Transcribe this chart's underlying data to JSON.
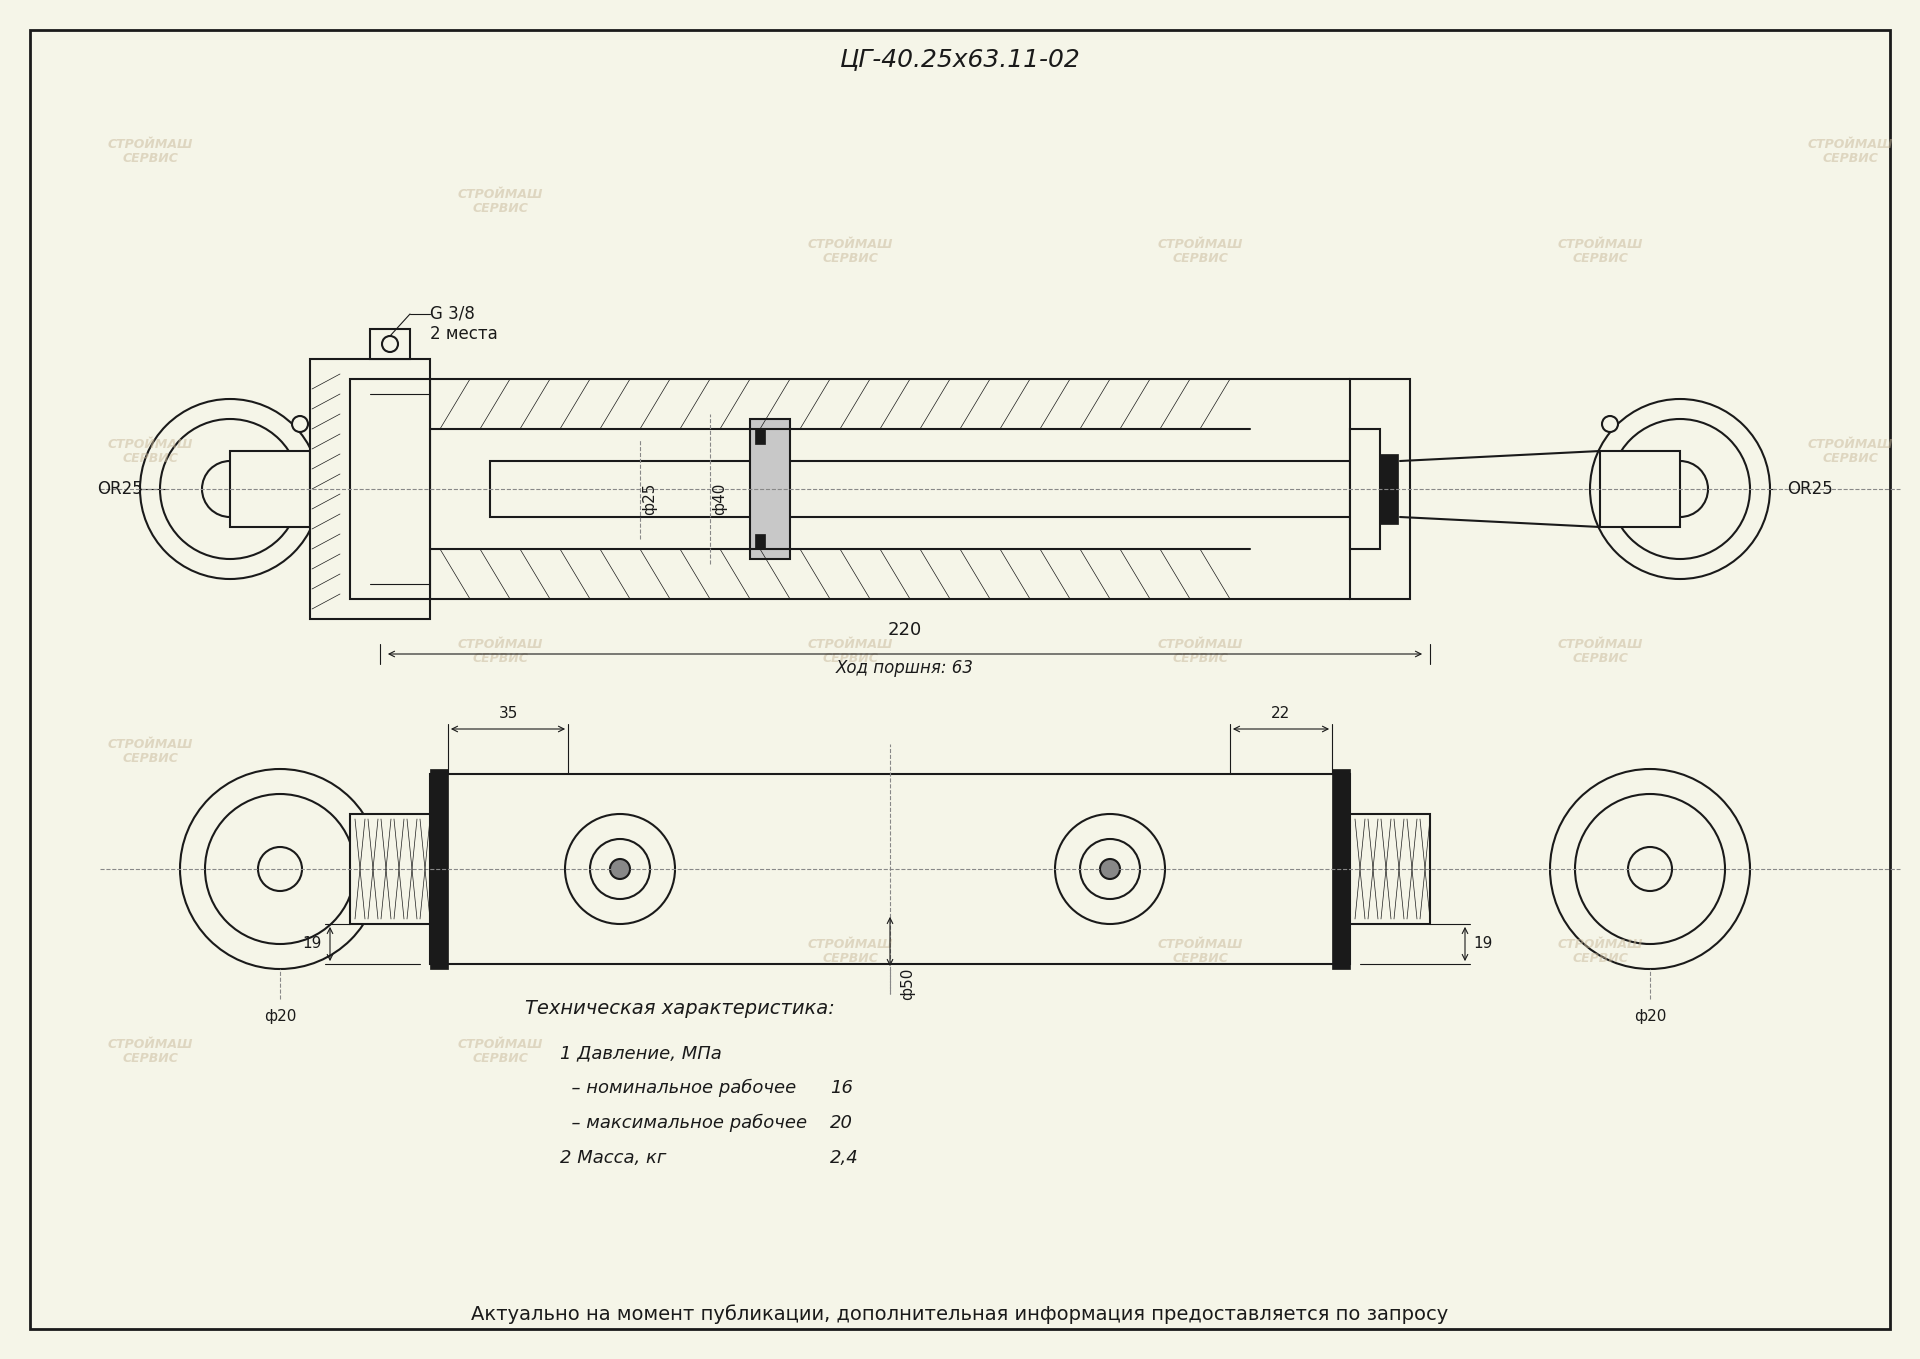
{
  "title": "ЦГ-40.25х63.11-02",
  "background_color": "#f5f5e8",
  "line_color": "#1a1a1a",
  "watermark_color": "#c8b89a",
  "tech_title": "Техническая характеристика:",
  "tech_items": [
    "1 Давление, МПа",
    "  – номинальное рабочее",
    "  – максимальное рабочее",
    "2 Масса, кг"
  ],
  "tech_values": [
    "",
    "16",
    "20",
    "2,4"
  ],
  "bottom_text": "Актуально на момент публикации, дополнительная информация предоставляется по запросу",
  "dim_220": "220",
  "dim_stroke": "Ход поршня: 63",
  "dim_35": "35",
  "dim_22": "22",
  "dim_19_left": "19",
  "dim_19_right": "19",
  "dim_phi50": "ф50",
  "dim_phi20_left": "ф20",
  "dim_phi20_right": "ф20",
  "label_g38": "G 3/8",
  "label_2mesta": "2 места",
  "label_r25_left": "OR25",
  "label_r25_right": "OR25",
  "label_phi25": "ф25",
  "label_phi40": "ф40"
}
